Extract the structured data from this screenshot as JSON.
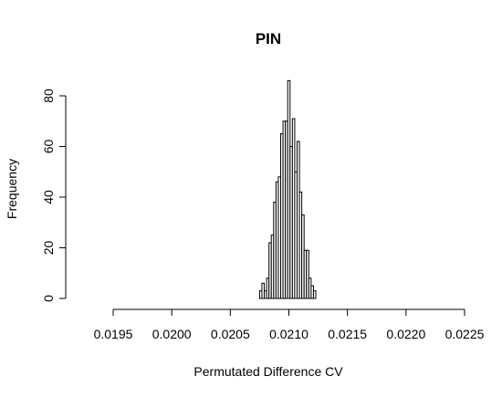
{
  "chart_data": {
    "type": "bar",
    "subtype": "histogram",
    "title": "PIN",
    "xlabel": "Permutated Difference CV",
    "ylabel": "Frequency",
    "xlim": [
      0.0195,
      0.0225
    ],
    "ylim": [
      0,
      86
    ],
    "x_ticks": [
      "0.0195",
      "0.0200",
      "0.0205",
      "0.0210",
      "0.0215",
      "0.0220",
      "0.0225"
    ],
    "y_ticks": [
      "0",
      "20",
      "40",
      "60",
      "80"
    ],
    "bin_width": 2e-05,
    "bin_start": 0.02075,
    "values": [
      3,
      6,
      3,
      8,
      22,
      25,
      38,
      46,
      48,
      65,
      70,
      70,
      86,
      60,
      71,
      50,
      62,
      42,
      33,
      19,
      19,
      8,
      5,
      3
    ],
    "grid": false,
    "legend": "none"
  }
}
